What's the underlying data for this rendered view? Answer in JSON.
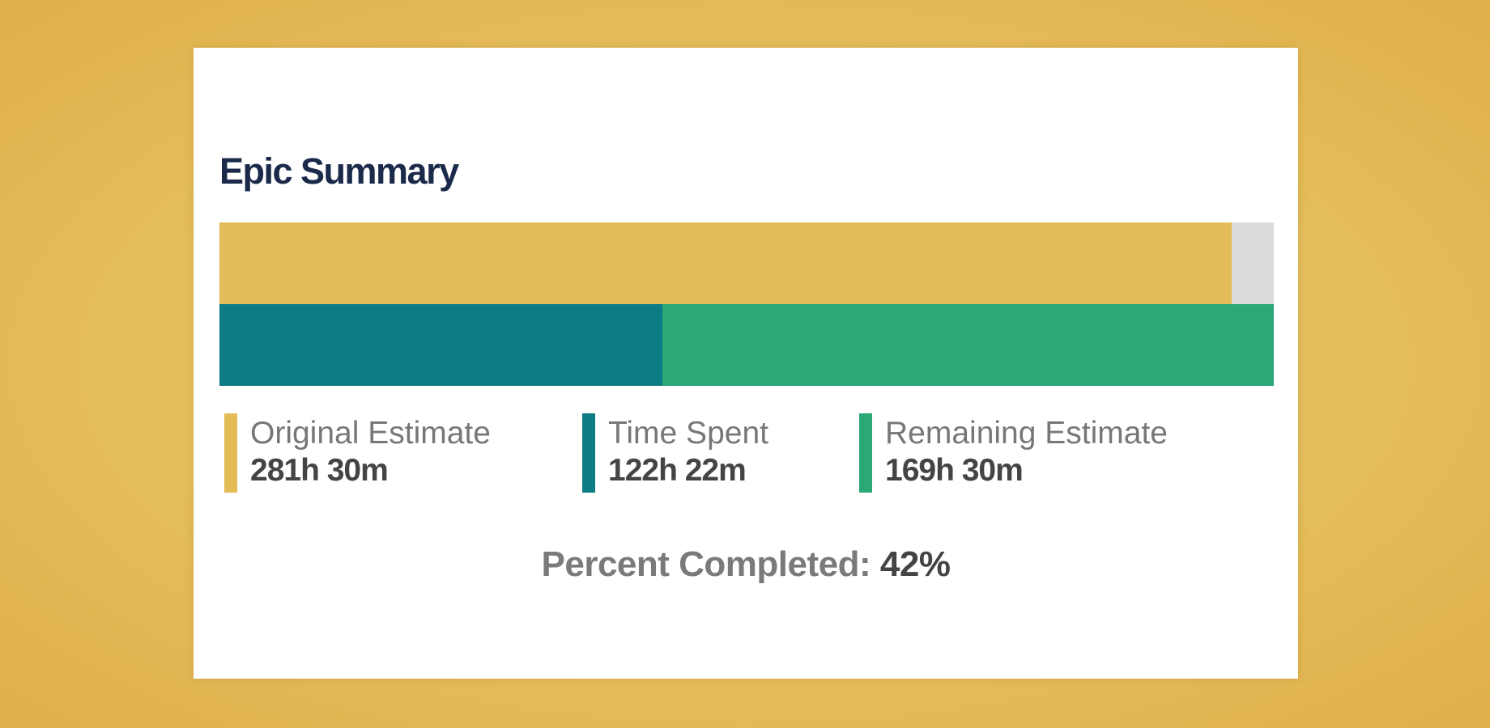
{
  "panel": {
    "title": "Epic Summary"
  },
  "progress": {
    "original_estimate_fraction": 0.96,
    "time_spent_fraction": 0.42
  },
  "legend": [
    {
      "label": "Original Estimate",
      "value": "281h 30m",
      "color": "#e3bc58"
    },
    {
      "label": "Time Spent",
      "value": "122h 22m",
      "color": "#0c7c84"
    },
    {
      "label": "Remaining Estimate",
      "value": "169h 30m",
      "color": "#2aa876"
    }
  ],
  "percent_completed": {
    "label": "Percent Completed:",
    "value": "42%"
  },
  "colors": {
    "background": "#e5be5c",
    "title": "#1b2a4a",
    "unfilled": "#dcdcdc"
  }
}
